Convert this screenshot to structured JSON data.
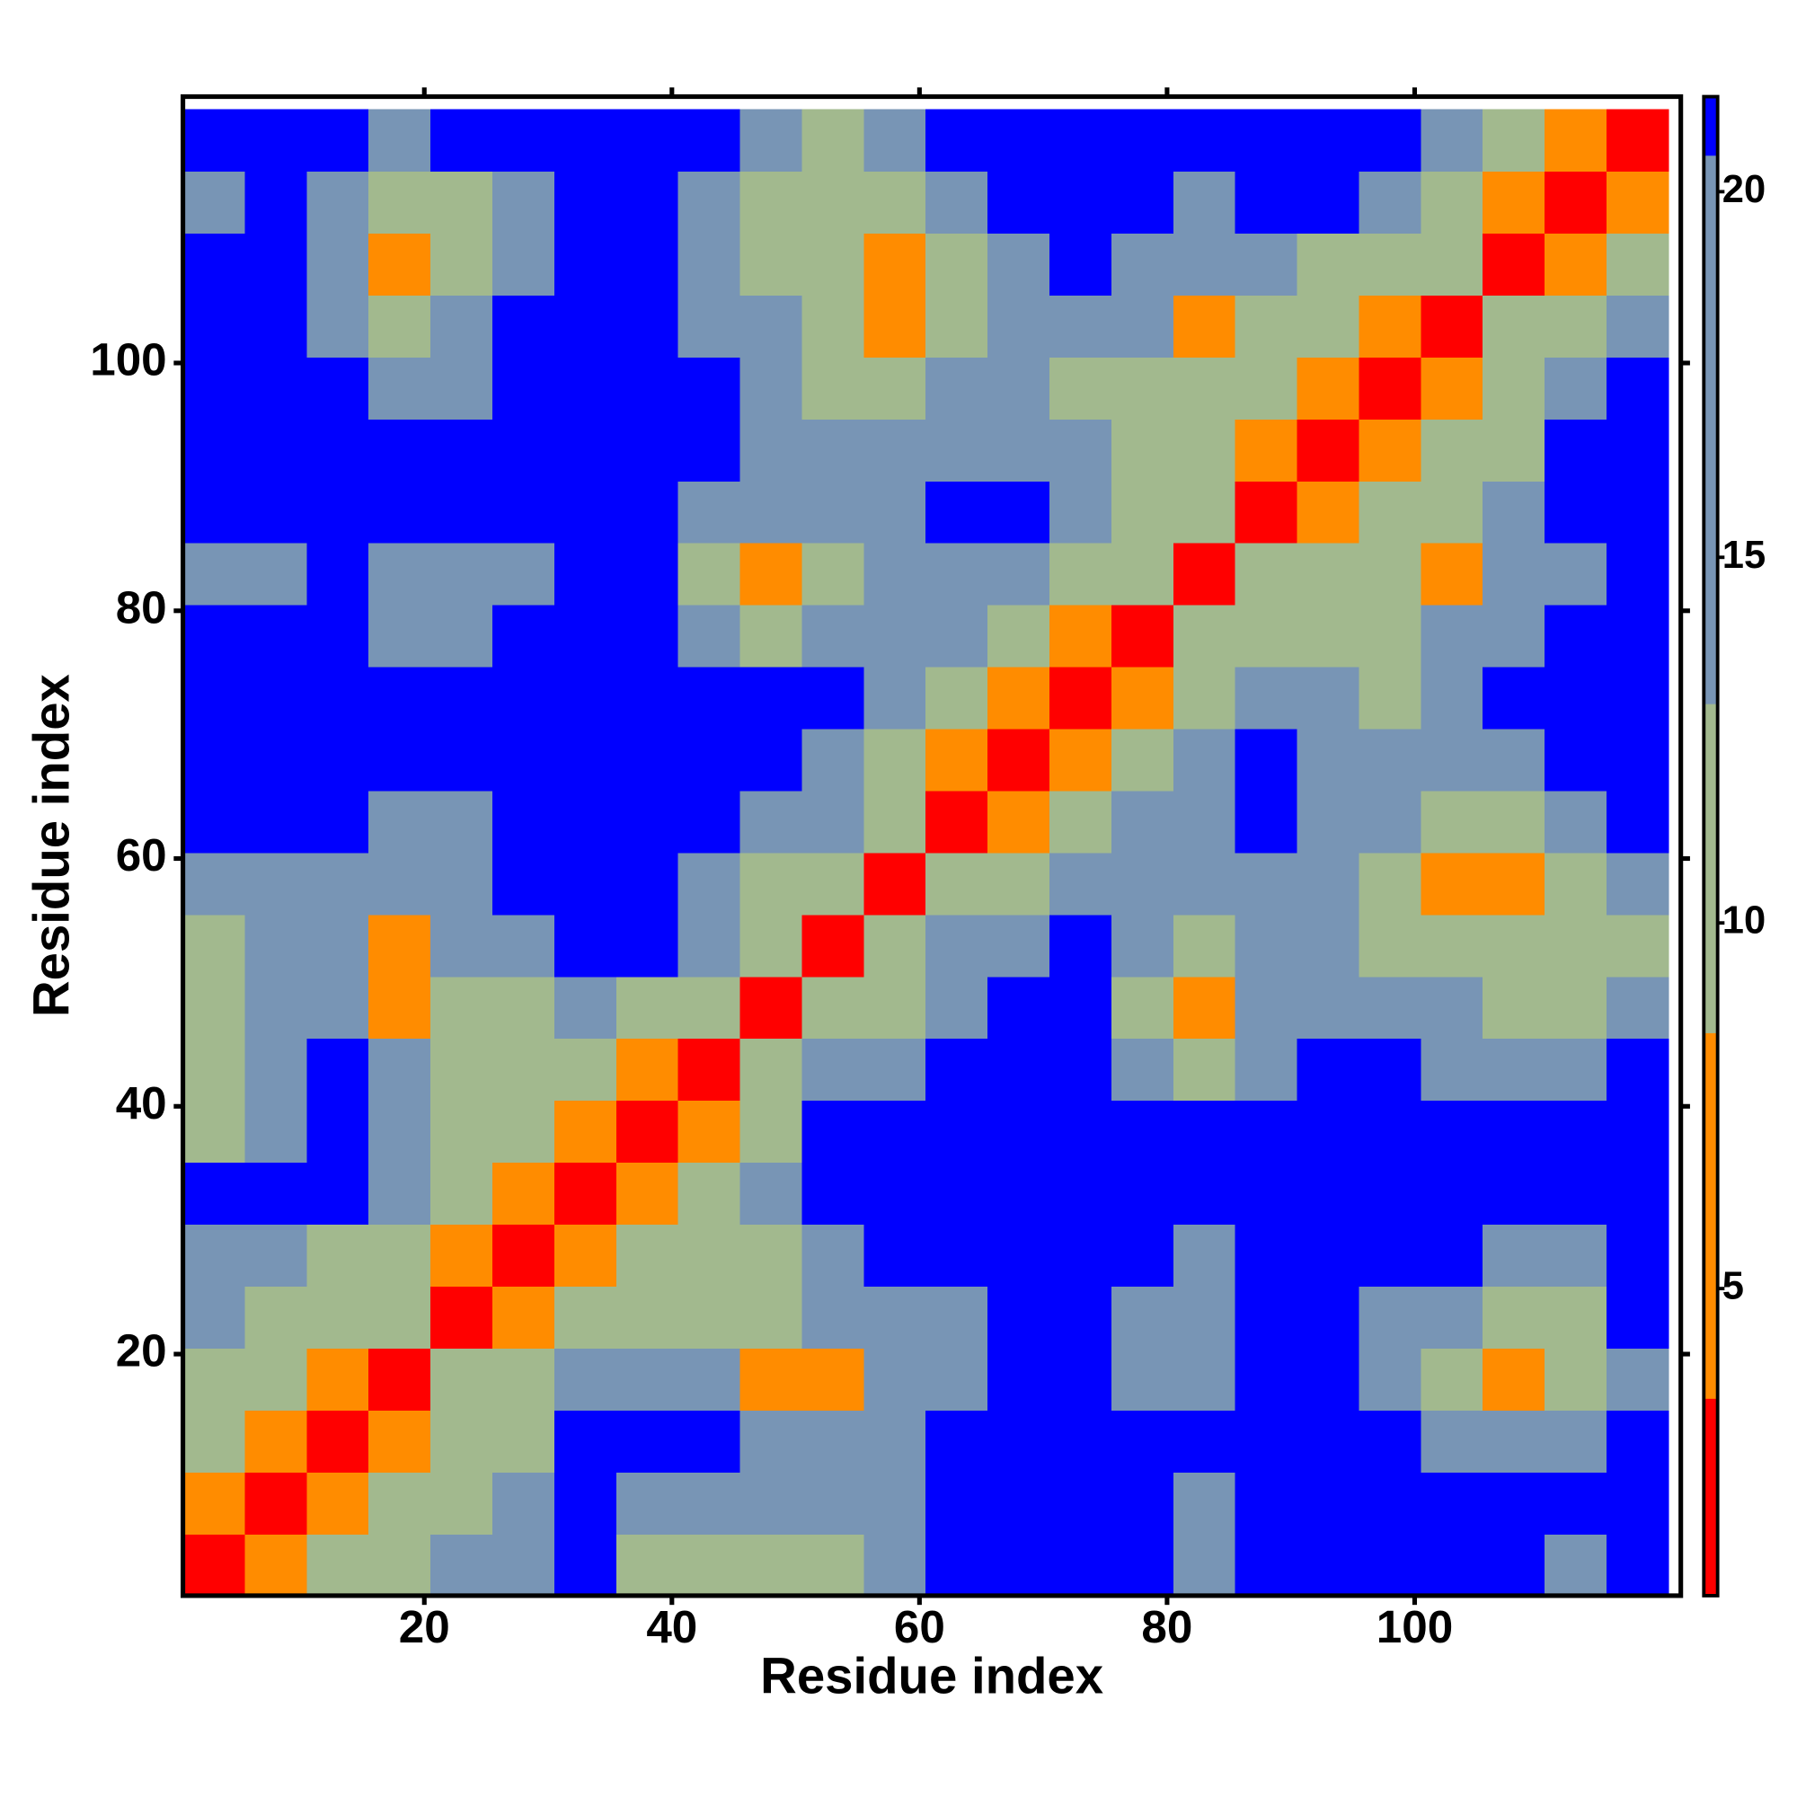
{
  "chart_data": {
    "type": "heatmap",
    "xlabel": "Residue index",
    "ylabel": "Residue index",
    "x": [
      3,
      8,
      13,
      18,
      23,
      28,
      33,
      38,
      43,
      48,
      53,
      58,
      63,
      68,
      73,
      78,
      83,
      88,
      93,
      98,
      103,
      108,
      113,
      118
    ],
    "y": [
      3,
      8,
      13,
      18,
      23,
      28,
      33,
      38,
      43,
      48,
      53,
      58,
      63,
      68,
      73,
      78,
      83,
      88,
      93,
      98,
      103,
      108,
      113,
      118
    ],
    "xlim": [
      0.5,
      121.5
    ],
    "ylim": [
      0.5,
      121.5
    ],
    "xticks": [
      20,
      40,
      60,
      80,
      100
    ],
    "yticks": [
      20,
      40,
      60,
      80,
      100
    ],
    "zlim": [
      0.8,
      21.3
    ],
    "zticks": [
      5,
      10,
      15,
      20
    ],
    "colorscale": [
      [
        3.5,
        "#ff0000"
      ],
      [
        8.5,
        "#ff8c00"
      ],
      [
        13,
        "#a2b98e"
      ],
      [
        20.5,
        "#7895b5"
      ],
      [
        21.3,
        "#0000ff"
      ]
    ],
    "z": [
      [
        2,
        6,
        10,
        10,
        16,
        16,
        21,
        10,
        10,
        10,
        10,
        16,
        21,
        21,
        21,
        21,
        16,
        21,
        21,
        21,
        21,
        21,
        16,
        21
      ],
      [
        6,
        2,
        6,
        10,
        10,
        16,
        21,
        16,
        16,
        16,
        16,
        16,
        21,
        21,
        21,
        21,
        16,
        21,
        21,
        21,
        21,
        21,
        21,
        21
      ],
      [
        10,
        6,
        2,
        6,
        10,
        10,
        21,
        21,
        21,
        16,
        16,
        16,
        21,
        21,
        21,
        21,
        21,
        21,
        21,
        21,
        16,
        16,
        16,
        21
      ],
      [
        10,
        10,
        6,
        2,
        10,
        10,
        16,
        16,
        16,
        6,
        6,
        16,
        16,
        21,
        21,
        16,
        16,
        21,
        21,
        16,
        10,
        6,
        10,
        16
      ],
      [
        16,
        10,
        10,
        10,
        2,
        6,
        10,
        10,
        10,
        10,
        16,
        16,
        16,
        21,
        21,
        16,
        16,
        21,
        21,
        16,
        16,
        10,
        10,
        21
      ],
      [
        16,
        16,
        10,
        10,
        6,
        2,
        6,
        10,
        10,
        10,
        16,
        21,
        21,
        21,
        21,
        21,
        16,
        21,
        21,
        21,
        21,
        16,
        16,
        21
      ],
      [
        21,
        21,
        21,
        16,
        10,
        6,
        2,
        6,
        10,
        16,
        21,
        21,
        21,
        21,
        21,
        21,
        21,
        21,
        21,
        21,
        21,
        21,
        21,
        21
      ],
      [
        10,
        16,
        21,
        16,
        10,
        10,
        6,
        2,
        6,
        10,
        21,
        21,
        21,
        21,
        21,
        21,
        21,
        21,
        21,
        21,
        21,
        21,
        21,
        21
      ],
      [
        10,
        16,
        21,
        16,
        10,
        10,
        10,
        6,
        2,
        10,
        16,
        16,
        21,
        21,
        21,
        16,
        10,
        16,
        21,
        21,
        16,
        16,
        16,
        21
      ],
      [
        10,
        16,
        16,
        6,
        10,
        10,
        16,
        10,
        10,
        2,
        10,
        10,
        16,
        21,
        21,
        10,
        6,
        16,
        16,
        16,
        16,
        10,
        10,
        16
      ],
      [
        10,
        16,
        16,
        6,
        16,
        16,
        21,
        21,
        16,
        10,
        2,
        10,
        16,
        16,
        21,
        16,
        10,
        16,
        16,
        10,
        10,
        10,
        10,
        10
      ],
      [
        16,
        16,
        16,
        16,
        16,
        21,
        21,
        21,
        16,
        10,
        10,
        2,
        10,
        10,
        16,
        16,
        16,
        16,
        16,
        10,
        6,
        6,
        10,
        16
      ],
      [
        21,
        21,
        21,
        16,
        16,
        21,
        21,
        21,
        21,
        16,
        16,
        10,
        2,
        6,
        10,
        16,
        16,
        21,
        16,
        16,
        10,
        10,
        16,
        21
      ],
      [
        21,
        21,
        21,
        21,
        21,
        21,
        21,
        21,
        21,
        21,
        16,
        10,
        6,
        2,
        6,
        10,
        16,
        21,
        16,
        16,
        16,
        16,
        21,
        21
      ],
      [
        21,
        21,
        21,
        21,
        21,
        21,
        21,
        21,
        21,
        21,
        21,
        16,
        10,
        6,
        2,
        6,
        10,
        16,
        16,
        10,
        16,
        21,
        21,
        21
      ],
      [
        21,
        21,
        21,
        16,
        16,
        21,
        21,
        21,
        16,
        10,
        16,
        16,
        16,
        10,
        6,
        2,
        10,
        10,
        10,
        10,
        16,
        16,
        21,
        21
      ],
      [
        16,
        16,
        21,
        16,
        16,
        16,
        21,
        21,
        10,
        6,
        10,
        16,
        16,
        16,
        10,
        10,
        2,
        10,
        10,
        10,
        6,
        16,
        16,
        21
      ],
      [
        21,
        21,
        21,
        21,
        21,
        21,
        21,
        21,
        16,
        16,
        16,
        16,
        21,
        21,
        16,
        10,
        10,
        2,
        6,
        10,
        10,
        16,
        21,
        21
      ],
      [
        21,
        21,
        21,
        21,
        21,
        21,
        21,
        21,
        21,
        16,
        16,
        16,
        16,
        16,
        16,
        10,
        10,
        6,
        2,
        6,
        10,
        10,
        21,
        21
      ],
      [
        21,
        21,
        21,
        16,
        16,
        21,
        21,
        21,
        21,
        16,
        10,
        10,
        16,
        16,
        10,
        10,
        10,
        10,
        6,
        2,
        6,
        10,
        16,
        21
      ],
      [
        21,
        21,
        16,
        10,
        16,
        21,
        21,
        21,
        16,
        16,
        10,
        6,
        10,
        16,
        16,
        16,
        6,
        10,
        10,
        6,
        2,
        10,
        10,
        16
      ],
      [
        21,
        21,
        16,
        6,
        10,
        16,
        21,
        21,
        16,
        10,
        10,
        6,
        10,
        16,
        21,
        16,
        16,
        16,
        10,
        10,
        10,
        2,
        6,
        10
      ],
      [
        16,
        21,
        16,
        10,
        10,
        16,
        21,
        21,
        16,
        10,
        10,
        10,
        16,
        21,
        21,
        21,
        16,
        21,
        21,
        16,
        10,
        6,
        2,
        6
      ],
      [
        21,
        21,
        21,
        16,
        21,
        21,
        21,
        21,
        21,
        16,
        10,
        16,
        21,
        21,
        21,
        21,
        21,
        21,
        21,
        21,
        16,
        10,
        6,
        2
      ]
    ]
  }
}
